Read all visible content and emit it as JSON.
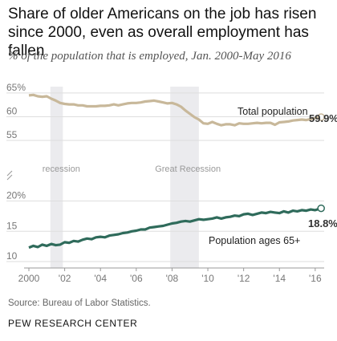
{
  "title": "Share of older Americans on the job has risen since 2000, even as overall employment has fallen",
  "subtitle": "% of the population that is employed, Jan. 2000-May 2016",
  "source": "Source: Bureau of Labor Statistics.",
  "org": "PEW RESEARCH CENTER",
  "colors": {
    "total": "#c8b89a",
    "older": "#2f6b5b",
    "recession": "#ebebee",
    "grid": "#dedede"
  },
  "chart_data": [
    {
      "type": "line",
      "series": [
        {
          "name": "Total population",
          "end_label": "59.9%",
          "x": [
            2000.0,
            2000.25,
            2000.5,
            2000.75,
            2001.0,
            2001.25,
            2001.5,
            2001.75,
            2002.0,
            2002.25,
            2002.5,
            2002.75,
            2003.0,
            2003.25,
            2003.5,
            2003.75,
            2004.0,
            2004.25,
            2004.5,
            2004.75,
            2005.0,
            2005.25,
            2005.5,
            2005.75,
            2006.0,
            2006.25,
            2006.5,
            2006.75,
            2007.0,
            2007.25,
            2007.5,
            2007.75,
            2008.0,
            2008.25,
            2008.5,
            2008.75,
            2009.0,
            2009.25,
            2009.5,
            2009.75,
            2010.0,
            2010.25,
            2010.5,
            2010.75,
            2011.0,
            2011.25,
            2011.5,
            2011.75,
            2012.0,
            2012.25,
            2012.5,
            2012.75,
            2013.0,
            2013.25,
            2013.5,
            2013.75,
            2014.0,
            2014.25,
            2014.5,
            2014.75,
            2015.0,
            2015.25,
            2015.5,
            2015.75,
            2016.0,
            2016.33
          ],
          "values": [
            64.5,
            64.6,
            64.3,
            64.2,
            64.3,
            63.8,
            63.4,
            62.9,
            62.7,
            62.6,
            62.6,
            62.4,
            62.4,
            62.2,
            62.2,
            62.2,
            62.3,
            62.3,
            62.4,
            62.6,
            62.4,
            62.6,
            62.8,
            62.9,
            62.9,
            63.0,
            63.2,
            63.3,
            63.4,
            63.2,
            63.0,
            62.8,
            62.9,
            62.6,
            62.1,
            61.3,
            60.6,
            59.9,
            59.4,
            58.6,
            58.5,
            58.9,
            58.5,
            58.2,
            58.4,
            58.4,
            58.2,
            58.6,
            58.5,
            58.5,
            58.6,
            58.7,
            58.6,
            58.7,
            58.7,
            58.3,
            58.8,
            58.9,
            59.0,
            59.2,
            59.3,
            59.4,
            59.3,
            59.5,
            59.7,
            59.9
          ]
        },
        {
          "name": "Population ages 65+",
          "end_label": "18.8%",
          "x": [
            2000.0,
            2000.25,
            2000.5,
            2000.75,
            2001.0,
            2001.25,
            2001.5,
            2001.75,
            2002.0,
            2002.25,
            2002.5,
            2002.75,
            2003.0,
            2003.25,
            2003.5,
            2003.75,
            2004.0,
            2004.25,
            2004.5,
            2004.75,
            2005.0,
            2005.25,
            2005.5,
            2005.75,
            2006.0,
            2006.25,
            2006.5,
            2006.75,
            2007.0,
            2007.25,
            2007.5,
            2007.75,
            2008.0,
            2008.25,
            2008.5,
            2008.75,
            2009.0,
            2009.25,
            2009.5,
            2009.75,
            2010.0,
            2010.25,
            2010.5,
            2010.75,
            2011.0,
            2011.25,
            2011.5,
            2011.75,
            2012.0,
            2012.25,
            2012.5,
            2012.75,
            2013.0,
            2013.25,
            2013.5,
            2013.75,
            2014.0,
            2014.25,
            2014.5,
            2014.75,
            2015.0,
            2015.25,
            2015.5,
            2015.75,
            2016.0,
            2016.33
          ],
          "values": [
            12.3,
            12.6,
            12.4,
            12.8,
            12.6,
            12.9,
            12.7,
            12.8,
            13.2,
            13.1,
            13.4,
            13.3,
            13.6,
            13.8,
            13.7,
            14.0,
            14.1,
            14.0,
            14.3,
            14.4,
            14.5,
            14.7,
            14.8,
            15.0,
            15.1,
            15.3,
            15.3,
            15.6,
            15.7,
            15.8,
            15.9,
            16.1,
            16.3,
            16.4,
            16.6,
            16.7,
            16.6,
            16.8,
            17.0,
            16.9,
            17.0,
            17.1,
            17.3,
            17.1,
            17.3,
            17.4,
            17.6,
            17.5,
            17.8,
            17.9,
            17.7,
            17.9,
            18.1,
            18.0,
            18.2,
            18.1,
            18.0,
            18.3,
            18.1,
            18.4,
            18.3,
            18.5,
            18.4,
            18.6,
            18.5,
            18.8
          ]
        }
      ],
      "shaded_periods": [
        {
          "label": "recession",
          "start": 2001.2,
          "end": 2001.9
        },
        {
          "label": "Great Recession",
          "start": 2007.9,
          "end": 2009.5
        }
      ],
      "upper_panel": {
        "ylim": [
          55,
          66
        ],
        "ytick_labels": [
          "65%",
          "60",
          "55"
        ],
        "yticks": [
          65,
          60,
          55
        ]
      },
      "lower_panel": {
        "ylim": [
          10,
          21
        ],
        "ytick_labels": [
          "20%",
          "15",
          "10"
        ],
        "yticks": [
          20,
          15,
          10
        ]
      },
      "xlim": [
        2000,
        2016.5
      ],
      "xticks": [
        2000,
        2002,
        2004,
        2006,
        2008,
        2010,
        2012,
        2014,
        2016
      ],
      "xtick_labels": [
        "2000",
        "'02",
        "'04",
        "'06",
        "'08",
        "'10",
        "'12",
        "'14",
        "'16"
      ],
      "axis_break": true,
      "grid": true
    }
  ]
}
